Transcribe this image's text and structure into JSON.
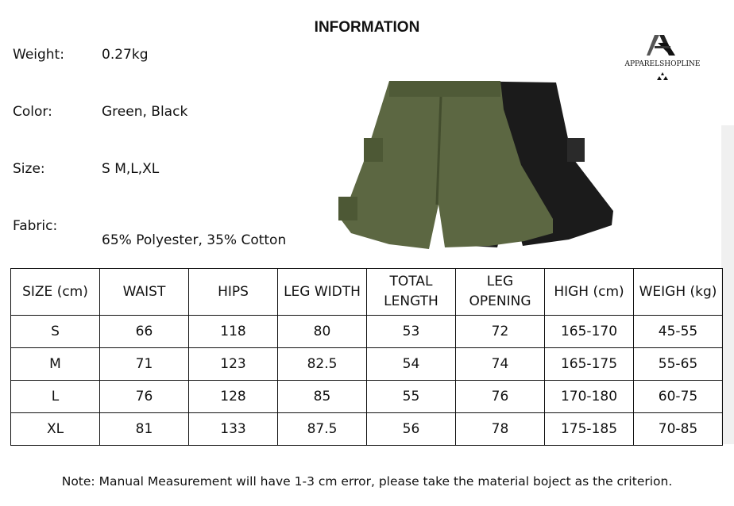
{
  "title": "INFORMATION",
  "brand": {
    "name": "APPARELSHOPLINE",
    "logo_icon": "stylized-A-logo"
  },
  "specs": [
    {
      "label": "Weight:",
      "value": "0.27kg"
    },
    {
      "label": "Color:",
      "value": "Green, Black"
    },
    {
      "label": "Size:",
      "value": "S M,L,XL"
    },
    {
      "label": "Fabric:",
      "value": "65% Polyester, 35% Cotton"
    }
  ],
  "product_image": {
    "description_icon": "cargo-shorts-green-black",
    "colors": [
      "#5b6640",
      "#1a1a1a"
    ]
  },
  "table": {
    "headers": [
      "SIZE (cm)",
      "WAIST",
      "HIPS",
      "LEG WIDTH",
      "TOTAL LENGTH",
      "LEG OPENING",
      "HIGH (cm)",
      "WEIGH (kg)"
    ],
    "rows": [
      [
        "S",
        "66",
        "118",
        "80",
        "53",
        "72",
        "165-170",
        "45-55"
      ],
      [
        "M",
        "71",
        "123",
        "82.5",
        "54",
        "74",
        "165-175",
        "55-65"
      ],
      [
        "L",
        "76",
        "128",
        "85",
        "55",
        "76",
        "170-180",
        "60-75"
      ],
      [
        "XL",
        "81",
        "133",
        "87.5",
        "56",
        "78",
        "175-185",
        "70-85"
      ]
    ]
  },
  "note": "Note: Manual Measurement will have 1-3 cm error, please take the material boject as the criterion."
}
